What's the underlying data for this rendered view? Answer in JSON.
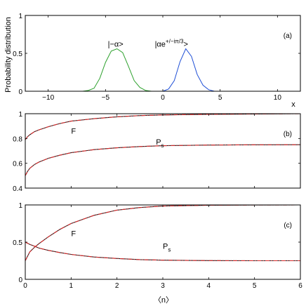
{
  "figure": {
    "ylabel_top": "Probability distribution",
    "xlabel_top": "x",
    "xlabel_bottom": "〈n〉"
  },
  "chart_data": [
    {
      "id": "a",
      "type": "line",
      "panel_label": "(a)",
      "xlim": [
        -12,
        12
      ],
      "ylim": [
        0,
        1
      ],
      "xticks": [
        -10,
        -5,
        0,
        5,
        10
      ],
      "yticks": [
        0,
        0.5,
        1
      ],
      "series": [
        {
          "color": "#2ca02c",
          "x": [
            -12,
            -7,
            -6.5,
            -6,
            -5.5,
            -5,
            -4.5,
            -4,
            -3.5,
            -3,
            -2.5,
            -2,
            -1.5,
            -1,
            12
          ],
          "y": [
            0,
            0,
            0.01,
            0.04,
            0.17,
            0.38,
            0.53,
            0.56,
            0.51,
            0.33,
            0.14,
            0.05,
            0.01,
            0,
            0
          ]
        },
        {
          "color": "#1f4fd6",
          "x": [
            -12,
            0,
            0.5,
            1,
            1.5,
            2,
            2.5,
            3,
            3.5,
            4,
            4.5,
            12
          ],
          "y": [
            0,
            0,
            0.03,
            0.14,
            0.39,
            0.56,
            0.46,
            0.22,
            0.08,
            0.02,
            0,
            0
          ]
        }
      ],
      "annotations": [
        {
          "text": "|−α>",
          "x": -4.8,
          "y": 0.59
        },
        {
          "text": "|αe",
          "sup": "+/−iπ/3",
          "after": ">",
          "x": -0.7,
          "y": 0.59
        }
      ]
    },
    {
      "id": "b",
      "type": "line",
      "panel_label": "(b)",
      "xlim": [
        0,
        6
      ],
      "ylim": [
        0.4,
        1
      ],
      "xticks": [
        0,
        1,
        2,
        3,
        4,
        5,
        6
      ],
      "yticks": [
        0.4,
        0.6,
        0.8,
        1
      ],
      "series": [
        {
          "name": "F",
          "x": [
            0,
            0.05,
            0.1,
            0.2,
            0.3,
            0.5,
            0.75,
            1,
            1.5,
            2,
            2.5,
            3,
            4,
            5,
            6
          ],
          "y": [
            0.79,
            0.815,
            0.83,
            0.855,
            0.87,
            0.895,
            0.92,
            0.94,
            0.96,
            0.975,
            0.985,
            0.99,
            0.995,
            0.998,
            1.0
          ]
        },
        {
          "name": "P_s",
          "x": [
            0,
            0.05,
            0.1,
            0.2,
            0.3,
            0.5,
            0.75,
            1,
            1.5,
            2,
            2.5,
            3,
            4,
            5,
            6
          ],
          "y": [
            0.5,
            0.535,
            0.56,
            0.59,
            0.61,
            0.64,
            0.665,
            0.685,
            0.71,
            0.725,
            0.735,
            0.742,
            0.747,
            0.749,
            0.75
          ]
        }
      ],
      "annotations": [
        {
          "text": "F",
          "x": 1.0,
          "y": 0.84
        },
        {
          "text": "P",
          "sub": "s",
          "x": 2.85,
          "y": 0.75
        }
      ]
    },
    {
      "id": "c",
      "type": "line",
      "panel_label": "(c)",
      "xlim": [
        0,
        6
      ],
      "ylim": [
        0,
        1
      ],
      "xticks": [
        0,
        1,
        2,
        3,
        4,
        5,
        6
      ],
      "yticks": [
        0,
        0.5,
        1
      ],
      "series": [
        {
          "name": "F",
          "x": [
            0,
            0.1,
            0.2,
            0.3,
            0.5,
            0.75,
            1,
            1.5,
            2,
            2.5,
            3,
            4,
            5,
            6
          ],
          "y": [
            0.25,
            0.37,
            0.43,
            0.48,
            0.57,
            0.67,
            0.75,
            0.86,
            0.93,
            0.965,
            0.985,
            0.996,
            0.999,
            1.0
          ]
        },
        {
          "name": "P_s",
          "x": [
            0,
            0.1,
            0.2,
            0.3,
            0.5,
            0.75,
            1,
            1.5,
            2,
            2.5,
            3,
            4,
            5,
            6
          ],
          "y": [
            0.5,
            0.47,
            0.445,
            0.42,
            0.39,
            0.36,
            0.335,
            0.3,
            0.28,
            0.265,
            0.258,
            0.252,
            0.25,
            0.25
          ]
        }
      ],
      "annotations": [
        {
          "text": "F",
          "x": 1.0,
          "y": 0.58
        },
        {
          "text": "P",
          "sub": "s",
          "x": 3.0,
          "y": 0.41
        }
      ]
    }
  ]
}
